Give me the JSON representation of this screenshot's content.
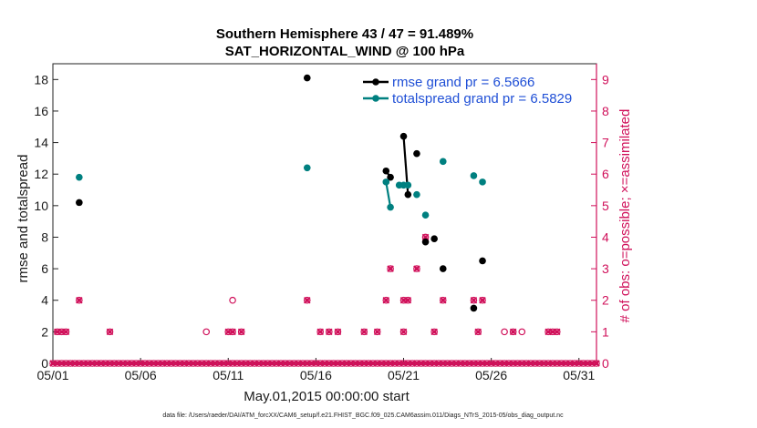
{
  "chart_data": {
    "type": "scatter",
    "title": "Southern Hemisphere 43 / 47 = 91.489%",
    "subtitle": "SAT_HORIZONTAL_WIND @ 100 hPa",
    "xlabel": "May.01,2015 00:00:00 start",
    "ylabel": "rmse and totalspread",
    "ylabel_right": "# of obs: o=possible; ×=assimilated",
    "xlim": [
      1,
      32
    ],
    "ylim": [
      0,
      19
    ],
    "ylim_right": [
      0,
      9.5
    ],
    "x_ticks": [
      1,
      6,
      11,
      16,
      21,
      26,
      31
    ],
    "x_tick_labels": [
      "05/01",
      "05/06",
      "05/11",
      "05/16",
      "05/21",
      "05/26",
      "05/31"
    ],
    "y_ticks": [
      0,
      2,
      4,
      6,
      8,
      10,
      12,
      14,
      16,
      18
    ],
    "y_ticks_right": [
      0,
      1,
      2,
      3,
      4,
      5,
      6,
      7,
      8,
      9
    ],
    "legend": [
      {
        "label": "rmse grand pr = 6.5666",
        "color": "#000000"
      },
      {
        "label": "totalspread grand pr = 6.5829",
        "color": "#008080"
      }
    ],
    "series": [
      {
        "name": "rmse",
        "color": "#000000",
        "points": [
          [
            2.5,
            10.2
          ],
          [
            15.5,
            18.1
          ],
          [
            20.0,
            12.2
          ],
          [
            20.25,
            11.8
          ],
          [
            21.0,
            14.4
          ],
          [
            21.25,
            10.7
          ],
          [
            21.75,
            13.3
          ],
          [
            22.25,
            7.7
          ],
          [
            22.75,
            7.9
          ],
          [
            23.25,
            6.0
          ],
          [
            25.0,
            3.5
          ],
          [
            25.5,
            6.5
          ]
        ],
        "segments": [
          [
            [
              20.0,
              12.2
            ],
            [
              20.25,
              11.8
            ]
          ],
          [
            [
              21.0,
              14.4
            ],
            [
              21.25,
              10.7
            ]
          ]
        ]
      },
      {
        "name": "totalspread",
        "color": "#008080",
        "points": [
          [
            2.5,
            11.8
          ],
          [
            15.5,
            12.4
          ],
          [
            20.0,
            11.5
          ],
          [
            20.25,
            9.9
          ],
          [
            20.75,
            11.3
          ],
          [
            21.0,
            11.3
          ],
          [
            21.25,
            11.3
          ],
          [
            21.75,
            10.7
          ],
          [
            22.25,
            9.4
          ],
          [
            23.25,
            12.8
          ],
          [
            25.0,
            11.9
          ],
          [
            25.5,
            11.5
          ]
        ],
        "segments": [
          [
            [
              20.0,
              11.5
            ],
            [
              20.25,
              9.9
            ]
          ],
          [
            [
              20.75,
              11.3
            ],
            [
              21.25,
              11.3
            ]
          ]
        ]
      }
    ],
    "obs_possible": [
      [
        1.0,
        0
      ],
      [
        1.25,
        0
      ],
      [
        1.5,
        0
      ],
      [
        1.75,
        0
      ],
      [
        2.0,
        0
      ],
      [
        2.25,
        0
      ],
      [
        2.5,
        0
      ],
      [
        2.75,
        0
      ],
      [
        3.0,
        0
      ],
      [
        3.25,
        0
      ],
      [
        3.5,
        0
      ],
      [
        3.75,
        0
      ],
      [
        4.0,
        0
      ],
      [
        4.25,
        0
      ],
      [
        4.5,
        0
      ],
      [
        4.75,
        0
      ],
      [
        5.0,
        0
      ],
      [
        5.25,
        0
      ],
      [
        5.5,
        0
      ],
      [
        5.75,
        0
      ],
      [
        6.0,
        0
      ],
      [
        6.25,
        0
      ],
      [
        6.5,
        0
      ],
      [
        6.75,
        0
      ],
      [
        7.0,
        0
      ],
      [
        7.25,
        0
      ],
      [
        7.5,
        0
      ],
      [
        7.75,
        0
      ],
      [
        8.0,
        0
      ],
      [
        8.25,
        0
      ],
      [
        8.5,
        0
      ],
      [
        8.75,
        0
      ],
      [
        9.0,
        0
      ],
      [
        9.25,
        0
      ],
      [
        9.5,
        0
      ],
      [
        9.75,
        0
      ],
      [
        10.0,
        0
      ],
      [
        10.25,
        0
      ],
      [
        10.5,
        0
      ],
      [
        10.75,
        0
      ],
      [
        11.0,
        0
      ],
      [
        11.25,
        0
      ],
      [
        11.5,
        0
      ],
      [
        11.75,
        0
      ],
      [
        12.0,
        0
      ],
      [
        12.25,
        0
      ],
      [
        12.5,
        0
      ],
      [
        12.75,
        0
      ],
      [
        13.0,
        0
      ],
      [
        13.25,
        0
      ],
      [
        13.5,
        0
      ],
      [
        13.75,
        0
      ],
      [
        14.0,
        0
      ],
      [
        14.25,
        0
      ],
      [
        14.5,
        0
      ],
      [
        14.75,
        0
      ],
      [
        15.0,
        0
      ],
      [
        15.25,
        0
      ],
      [
        15.5,
        0
      ],
      [
        15.75,
        0
      ],
      [
        16.0,
        0
      ],
      [
        16.25,
        0
      ],
      [
        16.5,
        0
      ],
      [
        16.75,
        0
      ],
      [
        17.0,
        0
      ],
      [
        17.25,
        0
      ],
      [
        17.5,
        0
      ],
      [
        17.75,
        0
      ],
      [
        18.0,
        0
      ],
      [
        18.25,
        0
      ],
      [
        18.5,
        0
      ],
      [
        18.75,
        0
      ],
      [
        19.0,
        0
      ],
      [
        19.25,
        0
      ],
      [
        19.5,
        0
      ],
      [
        19.75,
        0
      ],
      [
        20.0,
        0
      ],
      [
        20.25,
        0
      ],
      [
        20.5,
        0
      ],
      [
        20.75,
        0
      ],
      [
        21.0,
        0
      ],
      [
        21.25,
        0
      ],
      [
        21.5,
        0
      ],
      [
        21.75,
        0
      ],
      [
        22.0,
        0
      ],
      [
        22.25,
        0
      ],
      [
        22.5,
        0
      ],
      [
        22.75,
        0
      ],
      [
        23.0,
        0
      ],
      [
        23.25,
        0
      ],
      [
        23.5,
        0
      ],
      [
        23.75,
        0
      ],
      [
        24.0,
        0
      ],
      [
        24.25,
        0
      ],
      [
        24.5,
        0
      ],
      [
        24.75,
        0
      ],
      [
        25.0,
        0
      ],
      [
        25.25,
        0
      ],
      [
        25.5,
        0
      ],
      [
        25.75,
        0
      ],
      [
        26.0,
        0
      ],
      [
        26.25,
        0
      ],
      [
        26.5,
        0
      ],
      [
        26.75,
        0
      ],
      [
        27.0,
        0
      ],
      [
        27.25,
        0
      ],
      [
        27.5,
        0
      ],
      [
        27.75,
        0
      ],
      [
        28.0,
        0
      ],
      [
        28.25,
        0
      ],
      [
        28.5,
        0
      ],
      [
        28.75,
        0
      ],
      [
        29.0,
        0
      ],
      [
        29.25,
        0
      ],
      [
        29.5,
        0
      ],
      [
        29.75,
        0
      ],
      [
        30.0,
        0
      ],
      [
        30.25,
        0
      ],
      [
        30.5,
        0
      ],
      [
        30.75,
        0
      ],
      [
        31.0,
        0
      ],
      [
        31.25,
        0
      ],
      [
        31.5,
        0
      ],
      [
        31.75,
        0
      ],
      [
        32.0,
        0
      ],
      [
        1.25,
        1
      ],
      [
        1.5,
        1
      ],
      [
        1.75,
        1
      ],
      [
        4.25,
        1
      ],
      [
        9.75,
        1
      ],
      [
        11.0,
        1
      ],
      [
        11.25,
        1
      ],
      [
        11.75,
        1
      ],
      [
        16.25,
        1
      ],
      [
        16.75,
        1
      ],
      [
        17.25,
        1
      ],
      [
        18.75,
        1
      ],
      [
        19.5,
        1
      ],
      [
        21.0,
        1
      ],
      [
        22.75,
        1
      ],
      [
        25.25,
        1
      ],
      [
        26.75,
        1
      ],
      [
        27.25,
        1
      ],
      [
        27.75,
        1
      ],
      [
        29.25,
        1
      ],
      [
        29.5,
        1
      ],
      [
        29.75,
        1
      ],
      [
        2.5,
        2
      ],
      [
        11.25,
        2
      ],
      [
        15.5,
        2
      ],
      [
        20.0,
        2
      ],
      [
        21.0,
        2
      ],
      [
        21.25,
        2
      ],
      [
        23.25,
        2
      ],
      [
        25.0,
        2
      ],
      [
        25.5,
        2
      ],
      [
        20.25,
        3
      ],
      [
        21.75,
        3
      ],
      [
        22.25,
        4
      ]
    ],
    "obs_assimilated": [
      [
        1.0,
        0
      ],
      [
        1.25,
        0
      ],
      [
        1.5,
        0
      ],
      [
        1.75,
        0
      ],
      [
        2.0,
        0
      ],
      [
        2.25,
        0
      ],
      [
        2.5,
        0
      ],
      [
        2.75,
        0
      ],
      [
        3.0,
        0
      ],
      [
        3.25,
        0
      ],
      [
        3.5,
        0
      ],
      [
        3.75,
        0
      ],
      [
        4.0,
        0
      ],
      [
        4.25,
        0
      ],
      [
        4.5,
        0
      ],
      [
        4.75,
        0
      ],
      [
        5.0,
        0
      ],
      [
        5.25,
        0
      ],
      [
        5.5,
        0
      ],
      [
        5.75,
        0
      ],
      [
        6.0,
        0
      ],
      [
        6.25,
        0
      ],
      [
        6.5,
        0
      ],
      [
        6.75,
        0
      ],
      [
        7.0,
        0
      ],
      [
        7.25,
        0
      ],
      [
        7.5,
        0
      ],
      [
        7.75,
        0
      ],
      [
        8.0,
        0
      ],
      [
        8.25,
        0
      ],
      [
        8.5,
        0
      ],
      [
        8.75,
        0
      ],
      [
        9.0,
        0
      ],
      [
        9.25,
        0
      ],
      [
        9.5,
        0
      ],
      [
        9.75,
        0
      ],
      [
        10.0,
        0
      ],
      [
        10.25,
        0
      ],
      [
        10.5,
        0
      ],
      [
        10.75,
        0
      ],
      [
        11.0,
        0
      ],
      [
        11.25,
        0
      ],
      [
        11.5,
        0
      ],
      [
        11.75,
        0
      ],
      [
        12.0,
        0
      ],
      [
        12.25,
        0
      ],
      [
        12.5,
        0
      ],
      [
        12.75,
        0
      ],
      [
        13.0,
        0
      ],
      [
        13.25,
        0
      ],
      [
        13.5,
        0
      ],
      [
        13.75,
        0
      ],
      [
        14.0,
        0
      ],
      [
        14.25,
        0
      ],
      [
        14.5,
        0
      ],
      [
        14.75,
        0
      ],
      [
        15.0,
        0
      ],
      [
        15.25,
        0
      ],
      [
        15.5,
        0
      ],
      [
        15.75,
        0
      ],
      [
        16.0,
        0
      ],
      [
        16.25,
        0
      ],
      [
        16.5,
        0
      ],
      [
        16.75,
        0
      ],
      [
        17.0,
        0
      ],
      [
        17.25,
        0
      ],
      [
        17.5,
        0
      ],
      [
        17.75,
        0
      ],
      [
        18.0,
        0
      ],
      [
        18.25,
        0
      ],
      [
        18.5,
        0
      ],
      [
        18.75,
        0
      ],
      [
        19.0,
        0
      ],
      [
        19.25,
        0
      ],
      [
        19.5,
        0
      ],
      [
        19.75,
        0
      ],
      [
        20.0,
        0
      ],
      [
        20.25,
        0
      ],
      [
        20.5,
        0
      ],
      [
        20.75,
        0
      ],
      [
        21.0,
        0
      ],
      [
        21.25,
        0
      ],
      [
        21.5,
        0
      ],
      [
        21.75,
        0
      ],
      [
        22.0,
        0
      ],
      [
        22.25,
        0
      ],
      [
        22.5,
        0
      ],
      [
        22.75,
        0
      ],
      [
        23.0,
        0
      ],
      [
        23.25,
        0
      ],
      [
        23.5,
        0
      ],
      [
        23.75,
        0
      ],
      [
        24.0,
        0
      ],
      [
        24.25,
        0
      ],
      [
        24.5,
        0
      ],
      [
        24.75,
        0
      ],
      [
        25.0,
        0
      ],
      [
        25.25,
        0
      ],
      [
        25.5,
        0
      ],
      [
        25.75,
        0
      ],
      [
        26.0,
        0
      ],
      [
        26.25,
        0
      ],
      [
        26.5,
        0
      ],
      [
        26.75,
        0
      ],
      [
        27.0,
        0
      ],
      [
        27.25,
        0
      ],
      [
        27.5,
        0
      ],
      [
        27.75,
        0
      ],
      [
        28.0,
        0
      ],
      [
        28.25,
        0
      ],
      [
        28.5,
        0
      ],
      [
        28.75,
        0
      ],
      [
        29.0,
        0
      ],
      [
        29.25,
        0
      ],
      [
        29.5,
        0
      ],
      [
        29.75,
        0
      ],
      [
        30.0,
        0
      ],
      [
        30.25,
        0
      ],
      [
        30.5,
        0
      ],
      [
        30.75,
        0
      ],
      [
        31.0,
        0
      ],
      [
        31.25,
        0
      ],
      [
        31.5,
        0
      ],
      [
        31.75,
        0
      ],
      [
        32.0,
        0
      ],
      [
        1.25,
        1
      ],
      [
        1.5,
        1
      ],
      [
        1.75,
        1
      ],
      [
        4.25,
        1
      ],
      [
        11.0,
        1
      ],
      [
        11.25,
        1
      ],
      [
        11.75,
        1
      ],
      [
        16.25,
        1
      ],
      [
        16.75,
        1
      ],
      [
        17.25,
        1
      ],
      [
        18.75,
        1
      ],
      [
        19.5,
        1
      ],
      [
        21.0,
        1
      ],
      [
        22.75,
        1
      ],
      [
        25.25,
        1
      ],
      [
        27.25,
        1
      ],
      [
        29.25,
        1
      ],
      [
        29.5,
        1
      ],
      [
        29.75,
        1
      ],
      [
        2.5,
        2
      ],
      [
        15.5,
        2
      ],
      [
        20.0,
        2
      ],
      [
        21.0,
        2
      ],
      [
        21.25,
        2
      ],
      [
        23.25,
        2
      ],
      [
        25.0,
        2
      ],
      [
        25.5,
        2
      ],
      [
        20.25,
        3
      ],
      [
        21.75,
        3
      ],
      [
        22.25,
        4
      ]
    ]
  },
  "footnote": "data file: /Users/raeder/DAI/ATM_forcXX/CAM6_setup/f.e21.FHIST_BGC.f09_025.CAM6assim.011/Diags_NTrS_2015-05/obs_diag_output.nc"
}
